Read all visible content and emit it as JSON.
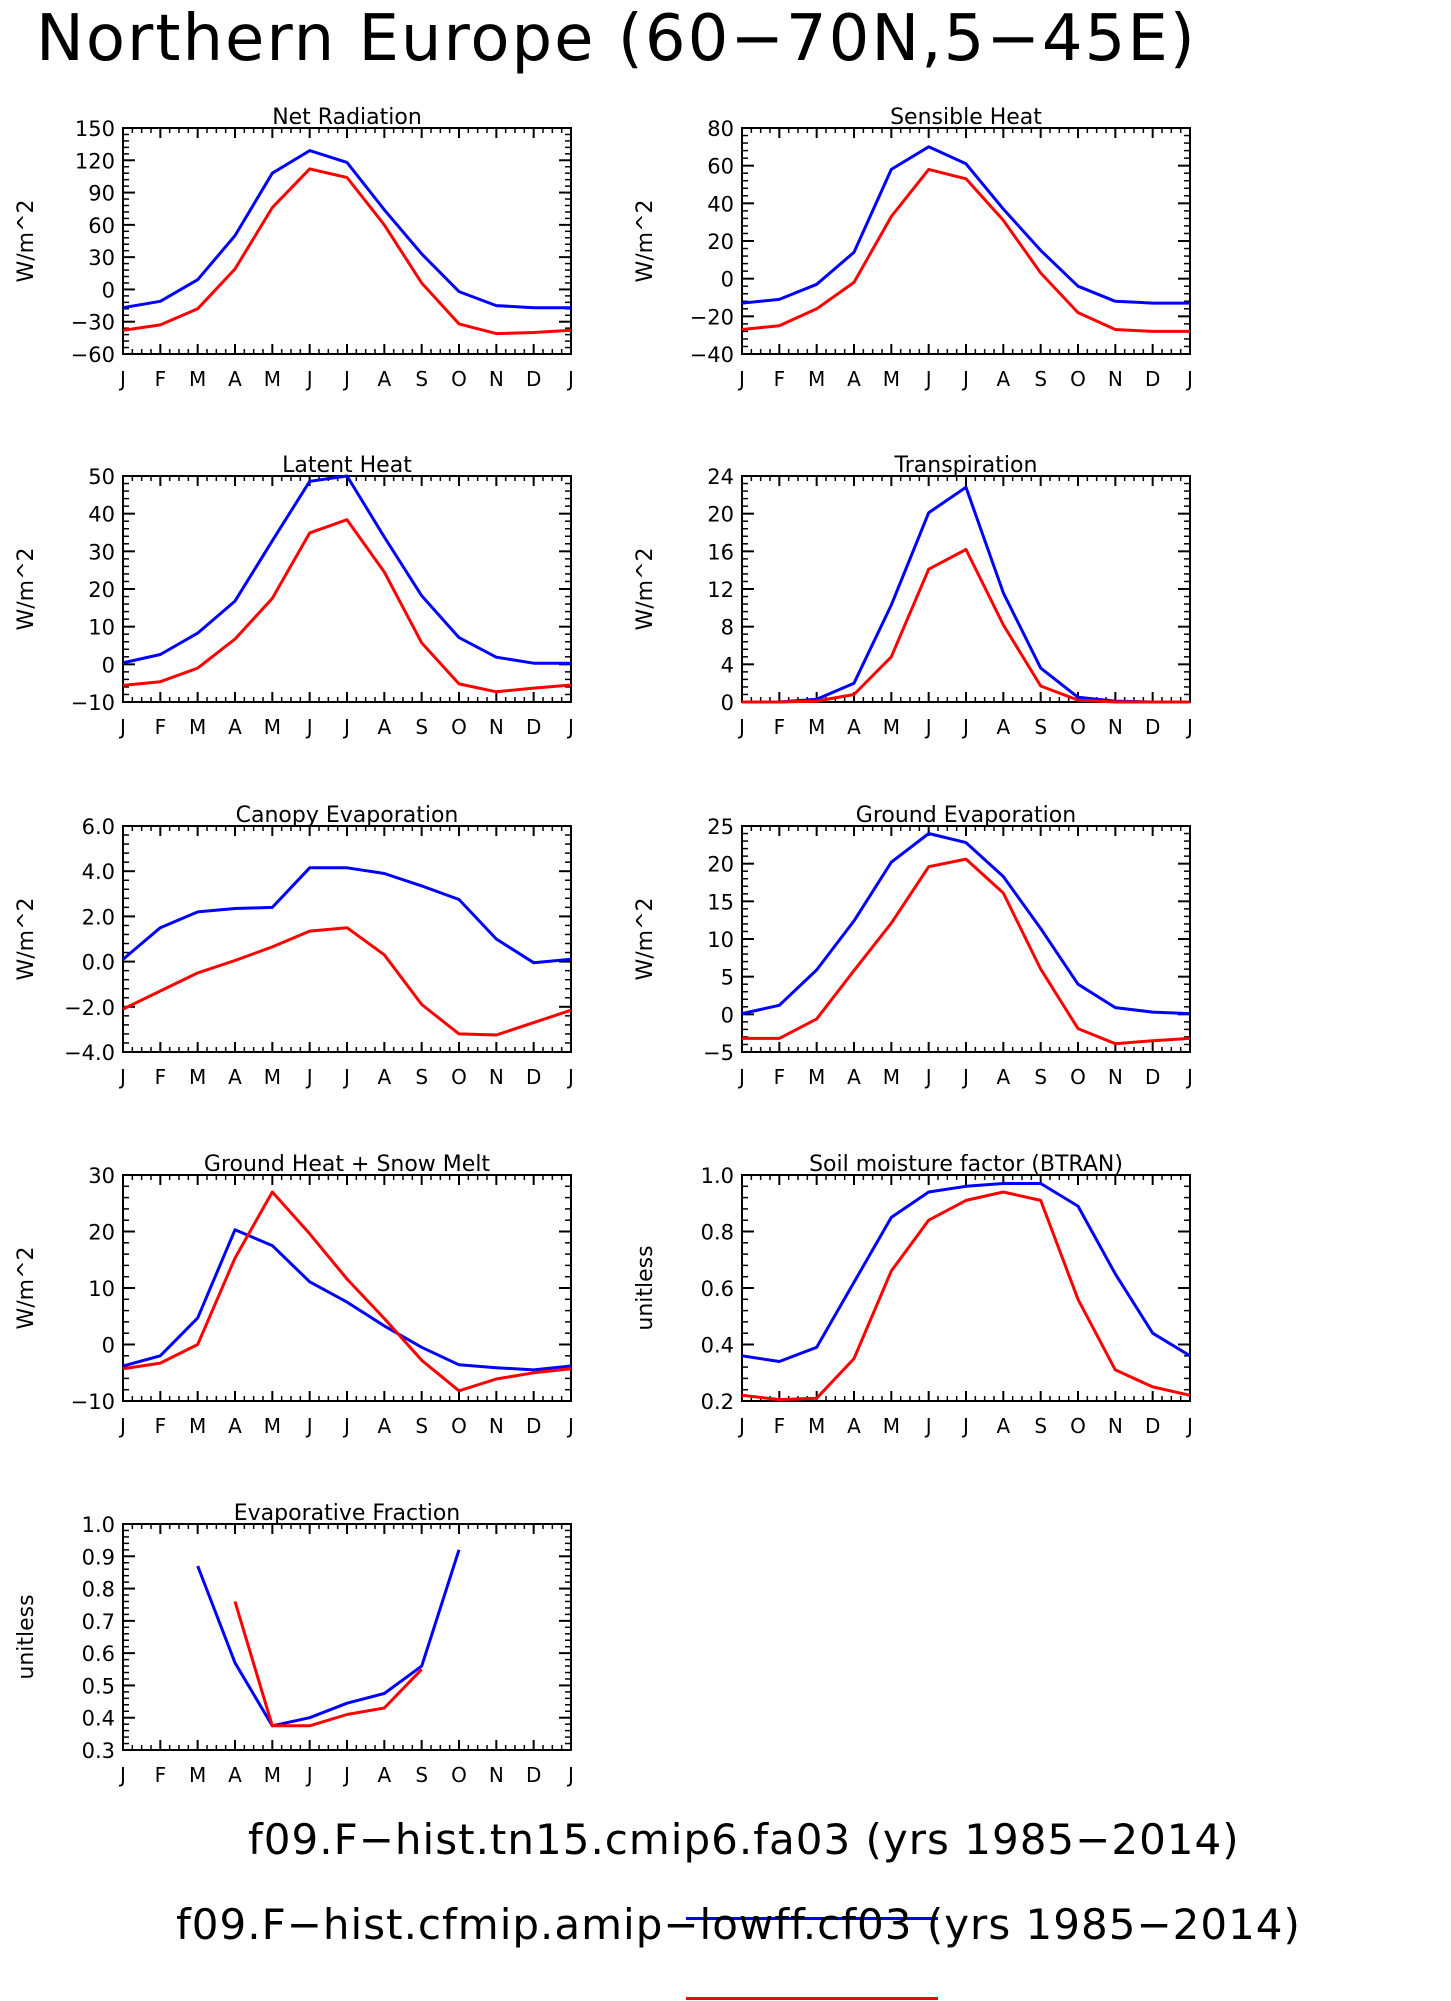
{
  "title": "Northern Europe (60−70N,5−45E)",
  "months": [
    "J",
    "F",
    "M",
    "A",
    "M",
    "J",
    "J",
    "A",
    "S",
    "O",
    "N",
    "D",
    "J"
  ],
  "colors": {
    "series_1": "#0000ff",
    "series_2": "#ff0000"
  },
  "legend": [
    {
      "label": "f09.F−hist.tn15.cmip6.fa03 (yrs 1985−2014)",
      "color": "#0000ff"
    },
    {
      "label": "f09.F−hist.cfmip.amip−lowff.cf03 (yrs 1985−2014)",
      "color": "#ff0000"
    }
  ],
  "chart_data": [
    {
      "type": "line",
      "title": "Net Radiation",
      "ylabel": "W/m^2",
      "ylim": [
        -60,
        150
      ],
      "yticks": [
        150,
        120,
        90,
        60,
        30,
        0,
        -30,
        -60
      ],
      "ytick_labels": [
        "150",
        "120",
        "90",
        "60",
        "30",
        "0",
        "−30",
        "−60"
      ],
      "series": [
        {
          "values": [
            -17,
            -11,
            9,
            50,
            108,
            129,
            118,
            74,
            33,
            -2,
            -15,
            -17,
            -17
          ]
        },
        {
          "values": [
            -38,
            -33,
            -18,
            19,
            76,
            112,
            104,
            60,
            6,
            -32,
            -41,
            -40,
            -38
          ]
        }
      ]
    },
    {
      "type": "line",
      "title": "Sensible Heat",
      "ylabel": "W/m^2",
      "ylim": [
        -40,
        80
      ],
      "yticks": [
        80,
        60,
        40,
        20,
        0,
        -20,
        -40
      ],
      "ytick_labels": [
        "80",
        "60",
        "40",
        "20",
        "0",
        "−20",
        "−40"
      ],
      "series": [
        {
          "values": [
            -13,
            -11,
            -3,
            14,
            58,
            70,
            61,
            37,
            15,
            -4,
            -12,
            -13,
            -13
          ]
        },
        {
          "values": [
            -27,
            -25,
            -16,
            -2,
            33,
            58,
            53,
            31,
            3,
            -18,
            -27,
            -28,
            -28
          ]
        }
      ]
    },
    {
      "type": "line",
      "title": "Latent Heat",
      "ylabel": "W/m^2",
      "ylim": [
        -10,
        50
      ],
      "yticks": [
        50,
        40,
        30,
        20,
        10,
        0,
        -10
      ],
      "ytick_labels": [
        "50",
        "40",
        "30",
        "20",
        "10",
        "0",
        "−10"
      ],
      "series": [
        {
          "values": [
            0.4,
            2.6,
            8.3,
            16.8,
            32.8,
            48.6,
            50.0,
            33.8,
            18.2,
            7.1,
            1.9,
            0.3,
            0.3
          ]
        },
        {
          "values": [
            -5.6,
            -4.6,
            -1.0,
            6.7,
            17.5,
            34.9,
            38.4,
            24.5,
            5.7,
            -5.2,
            -7.3,
            -6.3,
            -5.5
          ]
        }
      ]
    },
    {
      "type": "line",
      "title": "Transpiration",
      "ylabel": "W/m^2",
      "ylim": [
        0,
        24
      ],
      "yticks": [
        24,
        20,
        16,
        12,
        8,
        4,
        0
      ],
      "ytick_labels": [
        "24",
        "20",
        "16",
        "12",
        "8",
        "4",
        "0"
      ],
      "series": [
        {
          "values": [
            0,
            0,
            0.3,
            2.0,
            10.3,
            20.1,
            22.8,
            11.6,
            3.6,
            0.5,
            0.1,
            0,
            0
          ]
        },
        {
          "values": [
            0,
            0,
            0.1,
            0.8,
            4.8,
            14.1,
            16.2,
            8.2,
            1.7,
            0.2,
            0,
            0,
            0
          ]
        }
      ]
    },
    {
      "type": "line",
      "title": "Canopy Evaporation",
      "ylabel": "W/m^2",
      "ylim": [
        -4,
        6
      ],
      "yticks": [
        6,
        4,
        2,
        0,
        -2,
        -4
      ],
      "ytick_labels": [
        "6.0",
        "4.0",
        "2.0",
        "0.0",
        "−2.0",
        "−4.0"
      ],
      "series": [
        {
          "values": [
            0.1,
            1.5,
            2.2,
            2.35,
            2.4,
            4.15,
            4.15,
            3.9,
            3.35,
            2.75,
            1.0,
            -0.05,
            0.1
          ]
        },
        {
          "values": [
            -2.1,
            -1.3,
            -0.5,
            0.05,
            0.65,
            1.35,
            1.5,
            0.3,
            -1.9,
            -3.2,
            -3.25,
            -2.7,
            -2.15
          ]
        }
      ]
    },
    {
      "type": "line",
      "title": "Ground Evaporation",
      "ylabel": "W/m^2",
      "ylim": [
        -5,
        25
      ],
      "yticks": [
        25,
        20,
        15,
        10,
        5,
        0,
        -5
      ],
      "ytick_labels": [
        "25",
        "20",
        "15",
        "10",
        "5",
        "0",
        "−5"
      ],
      "series": [
        {
          "values": [
            0.1,
            1.2,
            5.9,
            12.4,
            20.2,
            24.0,
            22.8,
            18.3,
            11.4,
            4.0,
            0.9,
            0.3,
            0.1
          ]
        },
        {
          "values": [
            -3.2,
            -3.2,
            -0.6,
            5.8,
            12.1,
            19.6,
            20.6,
            16.1,
            6.0,
            -1.9,
            -3.9,
            -3.5,
            -3.2
          ]
        }
      ]
    },
    {
      "type": "line",
      "title": "Ground Heat + Snow Melt",
      "ylabel": "W/m^2",
      "ylim": [
        -10,
        30
      ],
      "yticks": [
        30,
        20,
        10,
        0,
        -10
      ],
      "ytick_labels": [
        "30",
        "20",
        "10",
        "0",
        "−10"
      ],
      "series": [
        {
          "values": [
            -3.8,
            -2.0,
            4.7,
            20.3,
            17.5,
            11.1,
            7.5,
            3.3,
            -0.5,
            -3.6,
            -4.1,
            -4.5,
            -3.8
          ]
        },
        {
          "values": [
            -4.3,
            -3.3,
            0,
            15.3,
            27.0,
            19.6,
            11.6,
            4.6,
            -2.8,
            -8.2,
            -6.1,
            -5.0,
            -4.3
          ]
        }
      ]
    },
    {
      "type": "line",
      "title": "Soil moisture factor (BTRAN)",
      "ylabel": "unitless",
      "ylim": [
        0.2,
        1.0
      ],
      "yticks": [
        1.0,
        0.8,
        0.6,
        0.4,
        0.2
      ],
      "ytick_labels": [
        "1.0",
        "0.8",
        "0.6",
        "0.4",
        "0.2"
      ],
      "series": [
        {
          "values": [
            0.36,
            0.34,
            0.39,
            0.62,
            0.85,
            0.94,
            0.96,
            0.97,
            0.97,
            0.89,
            0.65,
            0.44,
            0.36
          ]
        },
        {
          "values": [
            0.22,
            0.205,
            0.21,
            0.35,
            0.66,
            0.84,
            0.91,
            0.94,
            0.91,
            0.56,
            0.31,
            0.25,
            0.22
          ]
        }
      ]
    },
    {
      "type": "line",
      "title": "Evaporative Fraction",
      "ylabel": "unitless",
      "ylim": [
        0.3,
        1.0
      ],
      "yticks": [
        1.0,
        0.9,
        0.8,
        0.7,
        0.6,
        0.5,
        0.4,
        0.3
      ],
      "ytick_labels": [
        "1.0",
        "0.9",
        "0.8",
        "0.7",
        "0.6",
        "0.5",
        "0.4",
        "0.3"
      ],
      "series": [
        {
          "values": [
            null,
            null,
            0.87,
            0.57,
            0.375,
            0.4,
            0.445,
            0.475,
            0.56,
            0.92,
            null,
            null,
            null
          ]
        },
        {
          "values": [
            null,
            null,
            null,
            0.76,
            0.375,
            0.375,
            0.41,
            0.43,
            0.55,
            null,
            null,
            null,
            null
          ]
        }
      ]
    }
  ]
}
